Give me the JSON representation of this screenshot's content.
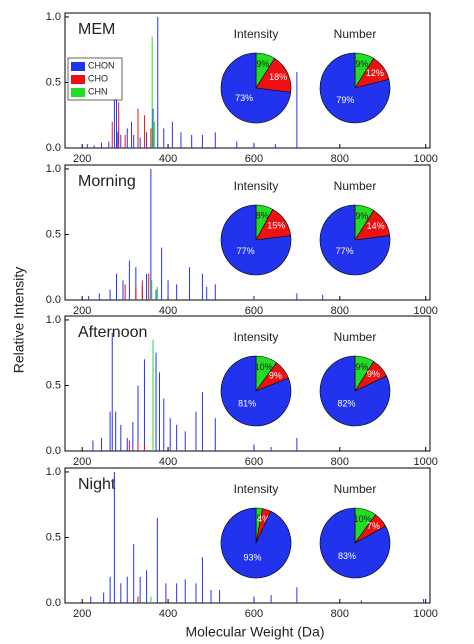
{
  "ylabel": "Relative Intensity",
  "xlabel": "Molecular Weight (Da)",
  "chart_data": [
    {
      "type": "stick",
      "title": "MEM",
      "legend": "upper left",
      "xlim": [
        160,
        1010
      ],
      "xticks": [
        200,
        400,
        600,
        800,
        1000
      ],
      "ylim": [
        0,
        1.03
      ],
      "yticks": [
        {
          "value": 0,
          "label": "0.0"
        },
        0.5,
        {
          "value": 1,
          "label": "1.0"
        }
      ],
      "series": [
        {
          "name": "CHON",
          "color": "#2233ee",
          "x": [
            212,
            228,
            245,
            262,
            275,
            280,
            283,
            290,
            305,
            315,
            320,
            335,
            350,
            365,
            376,
            390,
            410,
            430,
            455,
            480,
            510,
            560,
            600,
            650,
            700
          ],
          "values": [
            0.03,
            0.02,
            0.04,
            0.05,
            0.4,
            0.55,
            0.12,
            0.1,
            0.15,
            0.2,
            0.1,
            0.08,
            0.12,
            0.3,
            1.0,
            0.15,
            0.2,
            0.12,
            0.1,
            0.1,
            0.12,
            0.05,
            0.04,
            0.03,
            0.58
          ]
        },
        {
          "name": "CHO",
          "color": "#ee1111",
          "x": [
            270,
            285,
            300,
            330,
            345,
            360
          ],
          "values": [
            0.2,
            0.35,
            0.1,
            0.3,
            0.25,
            0.15
          ]
        },
        {
          "name": "CHN",
          "color": "#22dd22",
          "x": [
            363,
            368
          ],
          "values": [
            0.85,
            0.2
          ]
        }
      ]
    },
    {
      "type": "pie",
      "title": "Intensity",
      "values": [
        73,
        18,
        9
      ],
      "value_labels": [
        "73%",
        "18%",
        "9%"
      ],
      "colors": [
        "#2233ee",
        "#ee1111",
        "#22dd22"
      ]
    },
    {
      "type": "pie",
      "title": "Number",
      "values": [
        79,
        12,
        9
      ],
      "value_labels": [
        "79%",
        "12%",
        "9%"
      ],
      "colors": [
        "#2233ee",
        "#ee1111",
        "#22dd22"
      ]
    },
    {
      "type": "stick",
      "title": "Morning",
      "xlim": [
        160,
        1010
      ],
      "xticks": [
        200,
        400,
        600,
        800,
        1000
      ],
      "ylim": [
        0,
        1.03
      ],
      "yticks": [
        {
          "value": 0,
          "label": "0.0"
        },
        0.5,
        {
          "value": 1,
          "label": "1.0"
        }
      ],
      "series": [
        {
          "color": "#2233ee",
          "x": [
            215,
            240,
            265,
            280,
            295,
            310,
            325,
            340,
            350,
            360,
            372,
            385,
            400,
            420,
            450,
            480,
            490,
            510,
            600,
            700,
            760
          ],
          "values": [
            0.03,
            0.05,
            0.08,
            0.2,
            0.15,
            0.3,
            0.25,
            0.1,
            0.2,
            1.0,
            0.08,
            0.4,
            0.15,
            0.12,
            0.25,
            0.2,
            0.1,
            0.12,
            0.03,
            0.05,
            0.04
          ]
        },
        {
          "color": "#ee1111",
          "x": [
            300,
            325,
            340,
            355
          ],
          "values": [
            0.12,
            0.1,
            0.15,
            0.2
          ]
        },
        {
          "color": "#22dd22",
          "x": [
            362,
            375
          ],
          "values": [
            0.15,
            0.1
          ]
        }
      ]
    },
    {
      "type": "pie",
      "title": "Intensity",
      "values": [
        77,
        15,
        8
      ],
      "value_labels": [
        "77%",
        "15%",
        "8%"
      ],
      "colors": [
        "#2233ee",
        "#ee1111",
        "#22dd22"
      ]
    },
    {
      "type": "pie",
      "title": "Number",
      "values": [
        77,
        14,
        9
      ],
      "value_labels": [
        "77%",
        "14%",
        "9%"
      ],
      "colors": [
        "#2233ee",
        "#ee1111",
        "#22dd22"
      ]
    },
    {
      "type": "stick",
      "title": "Afternoon",
      "xlim": [
        160,
        1010
      ],
      "xticks": [
        200,
        400,
        600,
        800,
        1000
      ],
      "ylim": [
        0,
        1.03
      ],
      "yticks": [
        {
          "value": 0,
          "label": "0.0"
        },
        0.5,
        {
          "value": 1,
          "label": "1.0"
        }
      ],
      "series": [
        {
          "color": "#2233ee",
          "x": [
            225,
            245,
            265,
            270,
            278,
            290,
            305,
            318,
            330,
            345,
            372,
            380,
            390,
            405,
            420,
            440,
            465,
            480,
            510,
            600,
            640,
            700
          ],
          "values": [
            0.08,
            0.1,
            0.3,
            0.9,
            0.3,
            0.2,
            0.1,
            0.22,
            0.5,
            0.7,
            0.75,
            0.6,
            0.4,
            0.25,
            0.2,
            0.15,
            0.3,
            0.45,
            0.25,
            0.05,
            0.03,
            0.1
          ]
        },
        {
          "color": "#ee1111",
          "x": [
            310,
            330,
            345
          ],
          "values": [
            0.08,
            0.07,
            0.05
          ]
        },
        {
          "color": "#22dd22",
          "x": [
            365
          ],
          "values": [
            0.85
          ]
        }
      ]
    },
    {
      "type": "pie",
      "title": "Intensity",
      "values": [
        81,
        9,
        10
      ],
      "value_labels": [
        "81%",
        "9%",
        "10%"
      ],
      "colors": [
        "#2233ee",
        "#ee1111",
        "#22dd22"
      ]
    },
    {
      "type": "pie",
      "title": "Number",
      "values": [
        82,
        9,
        9
      ],
      "value_labels": [
        "82%",
        "9%",
        "9%"
      ],
      "colors": [
        "#2233ee",
        "#ee1111",
        "#22dd22"
      ]
    },
    {
      "type": "stick",
      "title": "Night",
      "xlim": [
        160,
        1010
      ],
      "xticks": [
        200,
        400,
        600,
        800,
        1000
      ],
      "ylim": [
        0,
        1.03
      ],
      "yticks": [
        {
          "value": 0,
          "label": "0.0"
        },
        0.5,
        {
          "value": 1,
          "label": "1.0"
        }
      ],
      "series": [
        {
          "color": "#2233ee",
          "x": [
            220,
            250,
            265,
            275,
            290,
            305,
            320,
            335,
            350,
            375,
            395,
            420,
            440,
            465,
            480,
            500,
            520,
            600,
            640,
            700,
            850,
            995
          ],
          "values": [
            0.05,
            0.08,
            0.2,
            1.0,
            0.15,
            0.2,
            0.45,
            0.2,
            0.25,
            0.65,
            0.15,
            0.15,
            0.18,
            0.15,
            0.35,
            0.1,
            0.1,
            0.05,
            0.06,
            0.12,
            0.02,
            0.03
          ]
        },
        {
          "color": "#ee1111",
          "x": [
            330
          ],
          "values": [
            0.05
          ]
        },
        {
          "color": "#22dd22",
          "x": [
            360
          ],
          "values": [
            0.05
          ]
        }
      ]
    },
    {
      "type": "pie",
      "title": "Intensity",
      "values": [
        93,
        4,
        3
      ],
      "value_labels": [
        "93%",
        "4%",
        "3%"
      ],
      "colors": [
        "#2233ee",
        "#ee1111",
        "#22dd22"
      ]
    },
    {
      "type": "pie",
      "title": "Number",
      "values": [
        83,
        7,
        10
      ],
      "value_labels": [
        "83%",
        "7%",
        "10%"
      ],
      "colors": [
        "#2233ee",
        "#ee1111",
        "#22dd22"
      ]
    }
  ]
}
